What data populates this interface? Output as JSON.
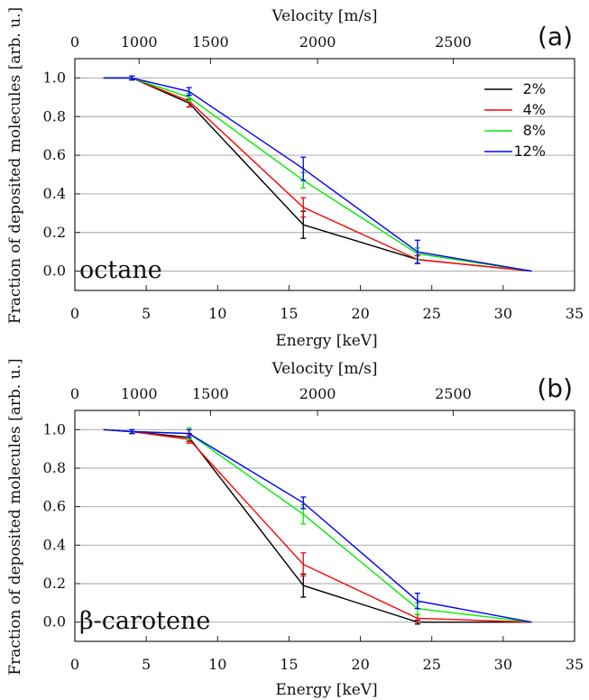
{
  "chart_data": [
    {
      "type": "line",
      "panel_label": "(a)",
      "annotation": "octane",
      "xlabel": "Energy [keV]",
      "ylabel": "Fraction of deposited molecules [arb. u.]",
      "top_axis_label": "Velocity [m/s]",
      "xlim": [
        0,
        35
      ],
      "ylim": [
        -0.1,
        1.1
      ],
      "x_ticks": [
        0,
        5,
        10,
        15,
        20,
        25,
        30,
        35
      ],
      "y_ticks": [
        0.0,
        0.2,
        0.4,
        0.6,
        0.8,
        1.0
      ],
      "y_tick_labels": [
        "0.0",
        "0.2",
        "0.4",
        "0.6",
        "0.8",
        "1.0"
      ],
      "top_ticks": [
        {
          "label": "0",
          "energy": 0
        },
        {
          "label": "1000",
          "energy": 4.5
        },
        {
          "label": "1500",
          "energy": 9.5
        },
        {
          "label": "2000",
          "energy": 17.0
        },
        {
          "label": "2500",
          "energy": 26.5
        }
      ],
      "grid": true,
      "legend_position": "top-right",
      "x": [
        2,
        4,
        8,
        16,
        24,
        32
      ],
      "series": [
        {
          "name": "2%",
          "color": "#000000",
          "values": [
            1.0,
            1.0,
            0.87,
            0.24,
            0.06,
            0.0
          ],
          "errors": [
            0,
            0.01,
            0.02,
            0.07,
            0.02,
            0
          ]
        },
        {
          "name": "4%",
          "color": "#ff0000",
          "values": [
            1.0,
            1.0,
            0.88,
            0.33,
            0.06,
            0.0
          ],
          "errors": [
            0,
            0.01,
            0.03,
            0.05,
            0.02,
            0
          ]
        },
        {
          "name": "8%",
          "color": "#00ee00",
          "values": [
            1.0,
            1.0,
            0.9,
            0.47,
            0.09,
            0.0
          ],
          "errors": [
            0,
            0.01,
            0.02,
            0.04,
            0.03,
            0
          ]
        },
        {
          "name": "12%",
          "color": "#0000ff",
          "values": [
            1.0,
            1.0,
            0.93,
            0.53,
            0.1,
            0.0
          ],
          "errors": [
            0,
            0.01,
            0.02,
            0.06,
            0.06,
            0
          ]
        }
      ]
    },
    {
      "type": "line",
      "panel_label": "(b)",
      "annotation": "β-carotene",
      "xlabel": "Energy [keV]",
      "ylabel": "Fraction of deposited molecules [arb. u.]",
      "top_axis_label": "Velocity [m/s]",
      "xlim": [
        0,
        35
      ],
      "ylim": [
        -0.1,
        1.1
      ],
      "x_ticks": [
        0,
        5,
        10,
        15,
        20,
        25,
        30,
        35
      ],
      "y_ticks": [
        0.0,
        0.2,
        0.4,
        0.6,
        0.8,
        1.0
      ],
      "y_tick_labels": [
        "0.0",
        "0.2",
        "0.4",
        "0.6",
        "0.8",
        "1.0"
      ],
      "top_ticks": [
        {
          "label": "0",
          "energy": 0
        },
        {
          "label": "1000",
          "energy": 4.5
        },
        {
          "label": "1500",
          "energy": 9.5
        },
        {
          "label": "2000",
          "energy": 17.0
        },
        {
          "label": "2500",
          "energy": 26.5
        }
      ],
      "grid": true,
      "x": [
        2,
        4,
        8,
        16,
        24,
        32
      ],
      "series": [
        {
          "name": "2%",
          "color": "#000000",
          "values": [
            1.0,
            0.99,
            0.96,
            0.19,
            0.0,
            0.0
          ],
          "errors": [
            0,
            0.01,
            0.02,
            0.06,
            0.01,
            0
          ]
        },
        {
          "name": "4%",
          "color": "#ff0000",
          "values": [
            1.0,
            0.99,
            0.95,
            0.3,
            0.02,
            0.0
          ],
          "errors": [
            0,
            0.01,
            0.02,
            0.06,
            0.02,
            0
          ]
        },
        {
          "name": "8%",
          "color": "#00ee00",
          "values": [
            1.0,
            0.99,
            0.98,
            0.56,
            0.07,
            0.0
          ],
          "errors": [
            0,
            0.01,
            0.03,
            0.05,
            0.03,
            0
          ]
        },
        {
          "name": "12%",
          "color": "#0000ff",
          "values": [
            1.0,
            0.99,
            0.98,
            0.62,
            0.11,
            0.0
          ],
          "errors": [
            0,
            0.01,
            0.02,
            0.03,
            0.04,
            0
          ]
        }
      ]
    }
  ]
}
